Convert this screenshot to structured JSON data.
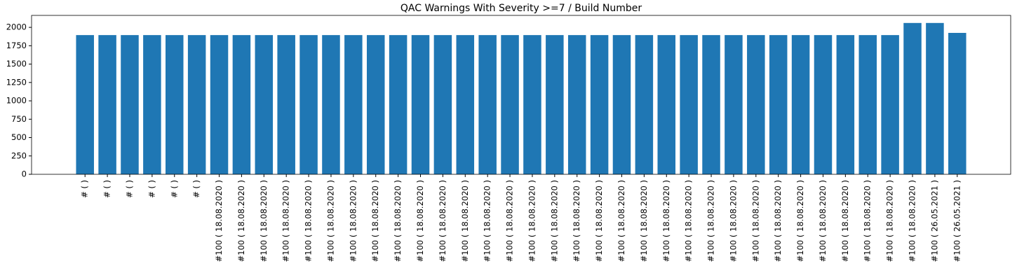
{
  "chart_data": {
    "type": "bar",
    "title": "QAC Warnings With Severity >=7 / Build Number",
    "categories": [
      "# (  )",
      "# (  )",
      "# (  )",
      "# (  )",
      "# (  )",
      "# (  )",
      "#100 ( 18.08.2020 )",
      "#100 ( 18.08.2020 )",
      "#100 ( 18.08.2020 )",
      "#100 ( 18.08.2020 )",
      "#100 ( 18.08.2020 )",
      "#100 ( 18.08.2020 )",
      "#100 ( 18.08.2020 )",
      "#100 ( 18.08.2020 )",
      "#100 ( 18.08.2020 )",
      "#100 ( 18.08.2020 )",
      "#100 ( 18.08.2020 )",
      "#100 ( 18.08.2020 )",
      "#100 ( 18.08.2020 )",
      "#100 ( 18.08.2020 )",
      "#100 ( 18.08.2020 )",
      "#100 ( 18.08.2020 )",
      "#100 ( 18.08.2020 )",
      "#100 ( 18.08.2020 )",
      "#100 ( 18.08.2020 )",
      "#100 ( 18.08.2020 )",
      "#100 ( 18.08.2020 )",
      "#100 ( 18.08.2020 )",
      "#100 ( 18.08.2020 )",
      "#100 ( 18.08.2020 )",
      "#100 ( 18.08.2020 )",
      "#100 ( 18.08.2020 )",
      "#100 ( 18.08.2020 )",
      "#100 ( 18.08.2020 )",
      "#100 ( 18.08.2020 )",
      "#100 ( 18.08.2020 )",
      "#100 ( 18.08.2020 )",
      "#100 ( 18.08.2020 )",
      "#100 ( 26.05.2021 )",
      "#100 ( 26.05.2021 )"
    ],
    "values": [
      1895,
      1895,
      1895,
      1895,
      1895,
      1895,
      1895,
      1895,
      1895,
      1895,
      1895,
      1895,
      1895,
      1895,
      1895,
      1895,
      1895,
      1895,
      1895,
      1895,
      1895,
      1895,
      1895,
      1895,
      1895,
      1895,
      1895,
      1895,
      1895,
      1895,
      1895,
      1895,
      1895,
      1895,
      1895,
      1895,
      1895,
      2060,
      2060,
      1925
    ],
    "color": "#1f77b4",
    "ylim": [
      0,
      2163
    ],
    "yticks": [
      0,
      250,
      500,
      750,
      1000,
      1250,
      1500,
      1750,
      2000
    ],
    "grid": false
  }
}
